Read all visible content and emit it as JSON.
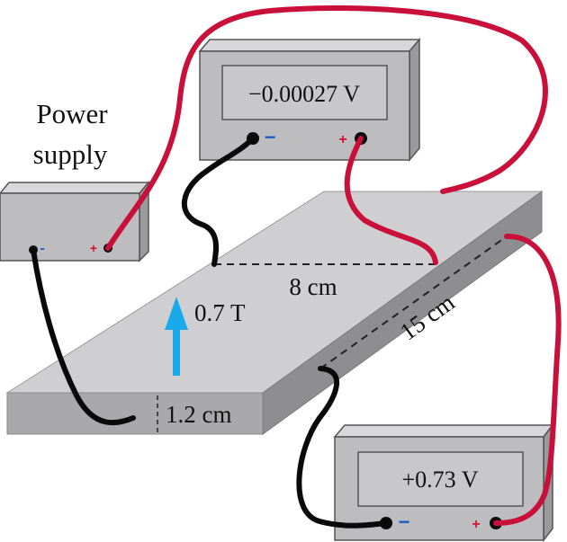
{
  "power_supply": {
    "label_line1": "Power",
    "label_line2": "supply",
    "minus_sign": "-",
    "plus_sign": "+"
  },
  "top_meter": {
    "reading": "−0.00027 V",
    "minus_sign": "−",
    "plus_sign": "+"
  },
  "bottom_meter": {
    "reading": "+0.73 V",
    "minus_sign": "−",
    "plus_sign": "+"
  },
  "slab": {
    "width_label": "8 cm",
    "length_label": "15 cm",
    "thickness_label": "1.2 cm",
    "field_label": "0.7 T"
  },
  "colors": {
    "slab_top": "#cfcfd1",
    "slab_front": "#a9a9ab",
    "slab_side": "#8e8e90",
    "meter_body": "#bdbdbf",
    "meter_screen": "#c8c8ca",
    "wire_red": "#c8103a",
    "wire_black": "#0a0a0a",
    "arrow": "#1aa9ea",
    "minus_blue": "#1f5bbf",
    "plus_red": "#d3102e"
  }
}
